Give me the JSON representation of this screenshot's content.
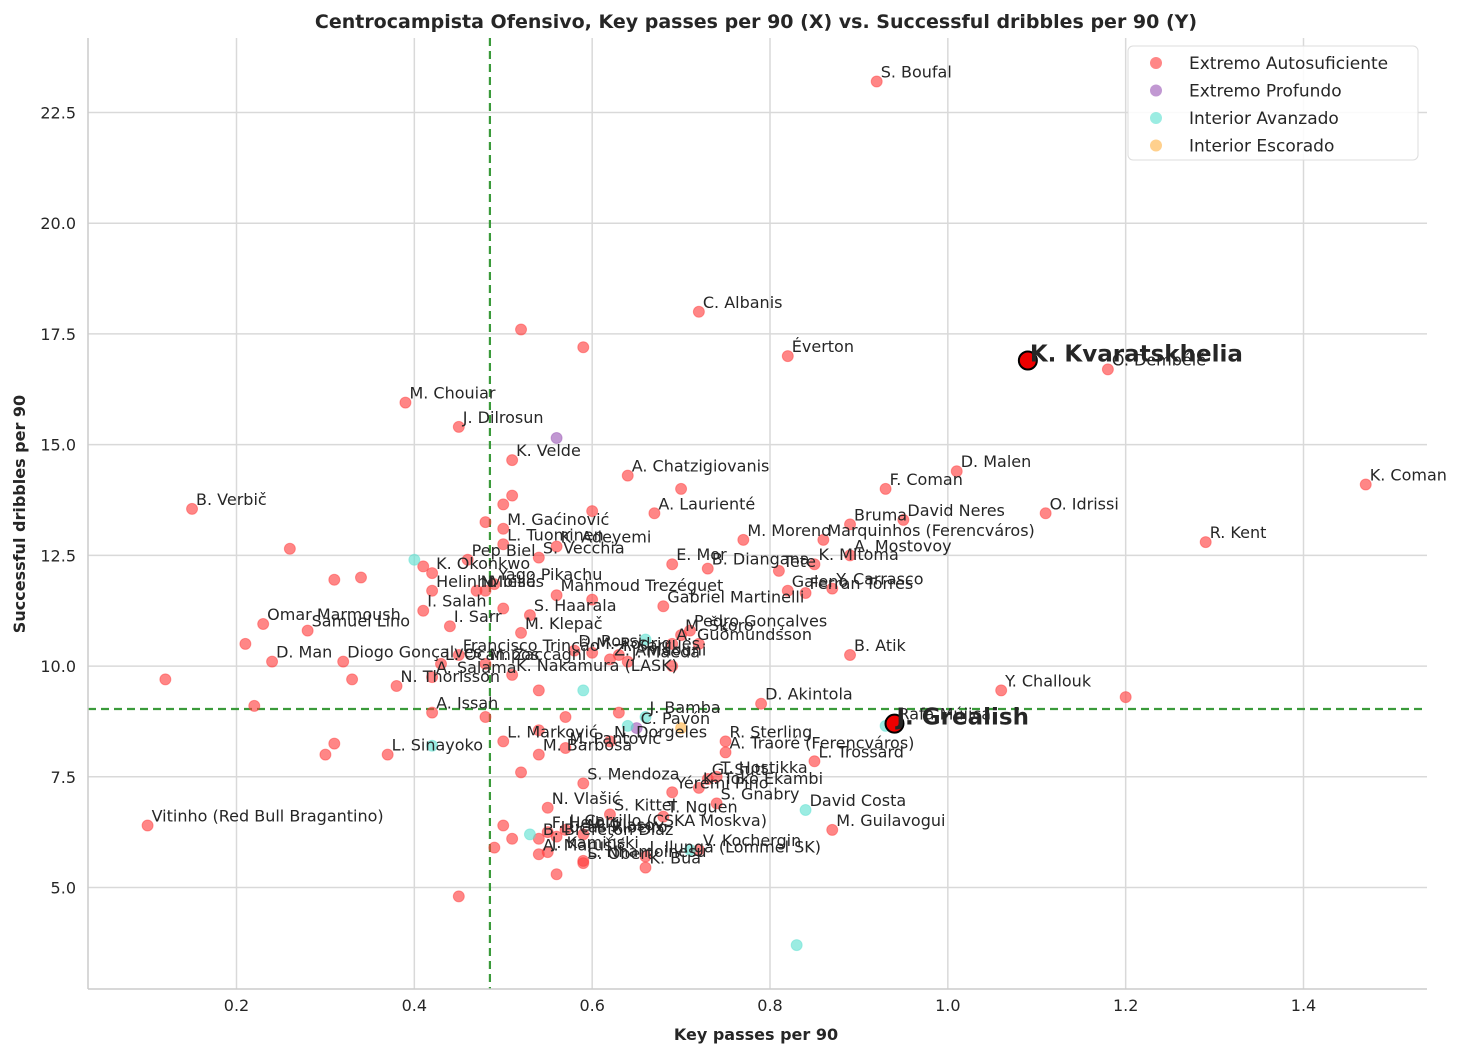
{
  "chart_data": {
    "type": "scatter",
    "title": "Centrocampista Ofensivo, Key passes per 90 (X) vs. Successful dribbles per 90 (Y)",
    "xlabel": "Key passes per 90",
    "ylabel": "Successful dribbles per 90",
    "xlim": [
      0.03,
      1.54
    ],
    "ylim": [
      2.3,
      24.0
    ],
    "xticks": [
      0.2,
      0.4,
      0.6,
      0.8,
      1.0,
      1.2,
      1.4
    ],
    "xtick_labels": [
      "0.2",
      "0.4",
      "0.6",
      "0.8",
      "1.0",
      "1.2",
      "1.4"
    ],
    "yticks": [
      5.0,
      7.5,
      10.0,
      12.5,
      15.0,
      17.5,
      20.0,
      22.5
    ],
    "ytick_labels": [
      "5.0",
      "7.5",
      "10.0",
      "12.5",
      "15.0",
      "17.5",
      "20.0",
      "22.5"
    ],
    "grid": true,
    "legend_position": "top-right",
    "reference_lines": {
      "x": 0.485,
      "y": 9.03
    },
    "series": [
      {
        "name": "Extremo Autosuficiente",
        "color": "#ff3b3b",
        "points": [
          {
            "x": 0.92,
            "y": 23.2,
            "label": "S. Boufal"
          },
          {
            "x": 0.72,
            "y": 18.0,
            "label": "C. Albanis"
          },
          {
            "x": 0.82,
            "y": 17.0,
            "label": "Éverton"
          },
          {
            "x": 1.18,
            "y": 16.7,
            "label": "O. Dembélé"
          },
          {
            "x": 0.39,
            "y": 15.95,
            "label": "M. Chouiar"
          },
          {
            "x": 0.45,
            "y": 15.4,
            "label": "J. Dilrosun"
          },
          {
            "x": 0.51,
            "y": 14.65,
            "label": "K. Velde"
          },
          {
            "x": 1.01,
            "y": 14.4,
            "label": "D. Malen"
          },
          {
            "x": 0.64,
            "y": 14.3,
            "label": "A. Chatzigiovanis"
          },
          {
            "x": 1.47,
            "y": 14.1,
            "label": "K. Coman"
          },
          {
            "x": 0.93,
            "y": 14.0,
            "label": "F. Coman"
          },
          {
            "x": 0.15,
            "y": 13.55,
            "label": "B. Verbič"
          },
          {
            "x": 1.11,
            "y": 13.45,
            "label": "O. Idrissi"
          },
          {
            "x": 0.67,
            "y": 13.45,
            "label": "A. Laurienté"
          },
          {
            "x": 0.95,
            "y": 13.3,
            "label": "David Neres"
          },
          {
            "x": 0.89,
            "y": 13.2,
            "label": "Bruma"
          },
          {
            "x": 0.5,
            "y": 13.1,
            "label": "M. Gaćinović"
          },
          {
            "x": 0.86,
            "y": 12.85,
            "label": "Marquinhos (Ferencváros)"
          },
          {
            "x": 0.77,
            "y": 12.85,
            "label": "M. Moreno"
          },
          {
            "x": 1.29,
            "y": 12.8,
            "label": "R. Kent"
          },
          {
            "x": 0.5,
            "y": 12.75,
            "label": "L. Tuominen"
          },
          {
            "x": 0.56,
            "y": 12.7,
            "label": "K. Adeyemi"
          },
          {
            "x": 0.46,
            "y": 12.4,
            "label": "Pep Biel"
          },
          {
            "x": 0.54,
            "y": 12.45,
            "label": "S. Vecchia"
          },
          {
            "x": 0.89,
            "y": 12.5,
            "label": "A. Mostovoy"
          },
          {
            "x": 0.69,
            "y": 12.3,
            "label": "E. Mor"
          },
          {
            "x": 0.85,
            "y": 12.3,
            "label": "K. Mitoma"
          },
          {
            "x": 0.73,
            "y": 12.2,
            "label": "B. Diangana"
          },
          {
            "x": 0.81,
            "y": 12.15,
            "label": "Tete"
          },
          {
            "x": 0.42,
            "y": 12.1,
            "label": "K. Okonkwo"
          },
          {
            "x": 0.49,
            "y": 11.85,
            "label": "Yago Pikachu"
          },
          {
            "x": 0.87,
            "y": 11.75,
            "label": "Y. Carrasco"
          },
          {
            "x": 0.48,
            "y": 11.7,
            "label": "Moisés"
          },
          {
            "x": 0.82,
            "y": 11.7,
            "label": "Galeno"
          },
          {
            "x": 0.84,
            "y": 11.65,
            "label": "Ferran Torres"
          },
          {
            "x": 0.42,
            "y": 11.7,
            "label": "Helinho"
          },
          {
            "x": 0.47,
            "y": 11.7,
            "label": "N. Ielia"
          },
          {
            "x": 0.56,
            "y": 11.6,
            "label": "Mahmoud Trezéguet"
          },
          {
            "x": 0.68,
            "y": 11.35,
            "label": "Gabriel Martinelli"
          },
          {
            "x": 0.41,
            "y": 11.25,
            "label": "I. Salah"
          },
          {
            "x": 0.53,
            "y": 11.15,
            "label": "S. Haarala"
          },
          {
            "x": 0.23,
            "y": 10.95,
            "label": "Omar Marmoush"
          },
          {
            "x": 0.28,
            "y": 10.8,
            "label": "Samuel Lino"
          },
          {
            "x": 0.44,
            "y": 10.9,
            "label": "I. Sarr"
          },
          {
            "x": 0.52,
            "y": 10.75,
            "label": "M. Klepač"
          },
          {
            "x": 0.7,
            "y": 10.7,
            "label": "M. Škoro"
          },
          {
            "x": 0.71,
            "y": 10.8,
            "label": "Pedro Gonçalves"
          },
          {
            "x": 0.69,
            "y": 10.5,
            "label": "A. Guðmundsson"
          },
          {
            "x": 0.89,
            "y": 10.25,
            "label": "B. Atik"
          },
          {
            "x": 0.58,
            "y": 10.35,
            "label": "D. Rossi"
          },
          {
            "x": 0.45,
            "y": 10.25,
            "label": "Francisco Trincão"
          },
          {
            "x": 0.6,
            "y": 10.3,
            "label": "M. Rodrigues"
          },
          {
            "x": 0.63,
            "y": 10.25,
            "label": "I. Sarr"
          },
          {
            "x": 0.24,
            "y": 10.1,
            "label": "D. Man"
          },
          {
            "x": 0.32,
            "y": 10.1,
            "label": "Diogo Gonçalves"
          },
          {
            "x": 0.48,
            "y": 10.05,
            "label": "M. Zaccagni"
          },
          {
            "x": 0.43,
            "y": 10.05,
            "label": "L. Ocampos"
          },
          {
            "x": 0.62,
            "y": 10.15,
            "label": "Z. Amdouni"
          },
          {
            "x": 0.64,
            "y": 10.1,
            "label": "J. Maeda"
          },
          {
            "x": 0.42,
            "y": 9.75,
            "label": "A. Salama"
          },
          {
            "x": 0.51,
            "y": 9.8,
            "label": "K. Nakamura (LASK)"
          },
          {
            "x": 0.38,
            "y": 9.55,
            "label": "N. Thorisson"
          },
          {
            "x": 1.06,
            "y": 9.45,
            "label": "Y. Challouk"
          },
          {
            "x": 0.79,
            "y": 9.15,
            "label": "D. Akintola"
          },
          {
            "x": 0.42,
            "y": 8.95,
            "label": "A. Issah"
          },
          {
            "x": 0.5,
            "y": 8.3,
            "label": "L. Marković"
          },
          {
            "x": 0.62,
            "y": 8.3,
            "label": "N. Dorgeles"
          },
          {
            "x": 0.57,
            "y": 8.15,
            "label": "M. Pantović"
          },
          {
            "x": 0.75,
            "y": 8.3,
            "label": "R. Sterling"
          },
          {
            "x": 0.54,
            "y": 8.0,
            "label": "M. Barbosa"
          },
          {
            "x": 0.75,
            "y": 8.05,
            "label": "A. Traoré (Ferencváros)"
          },
          {
            "x": 0.37,
            "y": 8.0,
            "label": "L. Sinayoko"
          },
          {
            "x": 0.85,
            "y": 7.85,
            "label": "L. Trossard"
          },
          {
            "x": 0.74,
            "y": 7.5,
            "label": "T. Hostikka"
          },
          {
            "x": 0.73,
            "y": 7.45,
            "label": "G. Sutt"
          },
          {
            "x": 0.59,
            "y": 7.35,
            "label": "S. Mendoza"
          },
          {
            "x": 0.72,
            "y": 7.25,
            "label": "K. Toko Ekambi"
          },
          {
            "x": 0.69,
            "y": 7.15,
            "label": "Yéremi Pino"
          },
          {
            "x": 0.74,
            "y": 6.9,
            "label": "S. Gnabry"
          },
          {
            "x": 0.55,
            "y": 6.8,
            "label": "N. Vlašić"
          },
          {
            "x": 0.68,
            "y": 6.6,
            "label": "T. Nguen"
          },
          {
            "x": 0.62,
            "y": 6.65,
            "label": "S. Kittel"
          },
          {
            "x": 0.1,
            "y": 6.4,
            "label": "Vitinho (Red Bull Bragantino)"
          },
          {
            "x": 0.87,
            "y": 6.3,
            "label": "M. Guilavogui"
          },
          {
            "x": 0.57,
            "y": 6.3,
            "label": "J. Carrillo (CSKA Moskva)"
          },
          {
            "x": 0.55,
            "y": 6.25,
            "label": "F. Helbig"
          },
          {
            "x": 0.59,
            "y": 6.2,
            "label": "M. Vlasov"
          },
          {
            "x": 0.56,
            "y": 6.15,
            "label": "Lucas Ribeiro"
          },
          {
            "x": 0.54,
            "y": 6.1,
            "label": "B. Brereton Díaz"
          },
          {
            "x": 0.72,
            "y": 5.85,
            "label": "V. Kochergin"
          },
          {
            "x": 0.54,
            "y": 5.75,
            "label": "A. Marušić"
          },
          {
            "x": 0.55,
            "y": 5.8,
            "label": "J. Kamiński"
          },
          {
            "x": 0.66,
            "y": 5.7,
            "label": "J. Ilunga (Lommel SK)"
          },
          {
            "x": 0.59,
            "y": 5.6,
            "label": "L. Nhamoinesu"
          },
          {
            "x": 0.59,
            "y": 5.55,
            "label": "S. Obert"
          },
          {
            "x": 0.66,
            "y": 5.45,
            "label": "K. Bua"
          },
          {
            "x": 0.52,
            "y": 17.6
          },
          {
            "x": 0.59,
            "y": 17.2
          },
          {
            "x": 0.7,
            "y": 14.0
          },
          {
            "x": 0.51,
            "y": 13.85
          },
          {
            "x": 0.5,
            "y": 13.65
          },
          {
            "x": 0.6,
            "y": 13.5
          },
          {
            "x": 0.48,
            "y": 13.25
          },
          {
            "x": 0.26,
            "y": 12.65
          },
          {
            "x": 0.41,
            "y": 12.25
          },
          {
            "x": 0.31,
            "y": 11.95
          },
          {
            "x": 0.34,
            "y": 12.0
          },
          {
            "x": 0.6,
            "y": 11.5
          },
          {
            "x": 0.5,
            "y": 11.3
          },
          {
            "x": 0.21,
            "y": 10.5
          },
          {
            "x": 0.72,
            "y": 10.5
          },
          {
            "x": 0.69,
            "y": 10.0
          },
          {
            "x": 0.12,
            "y": 9.7
          },
          {
            "x": 0.33,
            "y": 9.7
          },
          {
            "x": 0.54,
            "y": 9.45
          },
          {
            "x": 1.2,
            "y": 9.3
          },
          {
            "x": 0.22,
            "y": 9.1
          },
          {
            "x": 0.63,
            "y": 8.95
          },
          {
            "x": 0.48,
            "y": 8.85
          },
          {
            "x": 0.57,
            "y": 8.85
          },
          {
            "x": 0.54,
            "y": 8.55
          },
          {
            "x": 0.31,
            "y": 8.25
          },
          {
            "x": 0.3,
            "y": 8.0
          },
          {
            "x": 0.52,
            "y": 7.6
          },
          {
            "x": 0.5,
            "y": 6.4
          },
          {
            "x": 0.51,
            "y": 6.1
          },
          {
            "x": 0.49,
            "y": 5.9
          },
          {
            "x": 0.56,
            "y": 5.3
          },
          {
            "x": 0.45,
            "y": 4.8
          }
        ]
      },
      {
        "name": "Extremo Profundo",
        "color": "#9b59b6",
        "points": [
          {
            "x": 0.56,
            "y": 15.15
          },
          {
            "x": 0.65,
            "y": 8.6
          }
        ]
      },
      {
        "name": "Interior Avanzado",
        "color": "#5ee0d0",
        "points": [
          {
            "x": 0.4,
            "y": 12.4
          },
          {
            "x": 0.66,
            "y": 10.6
          },
          {
            "x": 0.59,
            "y": 9.45
          },
          {
            "x": 0.66,
            "y": 8.85
          },
          {
            "x": 0.64,
            "y": 8.65
          },
          {
            "x": 0.93,
            "y": 8.65
          },
          {
            "x": 0.42,
            "y": 8.2
          },
          {
            "x": 0.84,
            "y": 6.75,
            "label": "David Costa"
          },
          {
            "x": 0.53,
            "y": 6.2
          },
          {
            "x": 0.71,
            "y": 5.85
          },
          {
            "x": 0.83,
            "y": 3.7
          }
        ]
      },
      {
        "name": "Interior Escorado",
        "color": "#ffb347",
        "points": [
          {
            "x": 0.7,
            "y": 8.6
          }
        ]
      }
    ],
    "annotations": [
      {
        "x": 0.65,
        "y": 8.6,
        "label": "C. Pavón"
      },
      {
        "x": 0.66,
        "y": 8.85,
        "label": "J. Bamba"
      },
      {
        "x": 0.94,
        "y": 8.7,
        "label": "Rafa Mújica"
      }
    ],
    "highlights": [
      {
        "x": 1.09,
        "y": 16.9,
        "label": "K. Kvaratskhelia"
      },
      {
        "x": 0.94,
        "y": 8.7,
        "label": "J. Grealish"
      }
    ]
  }
}
